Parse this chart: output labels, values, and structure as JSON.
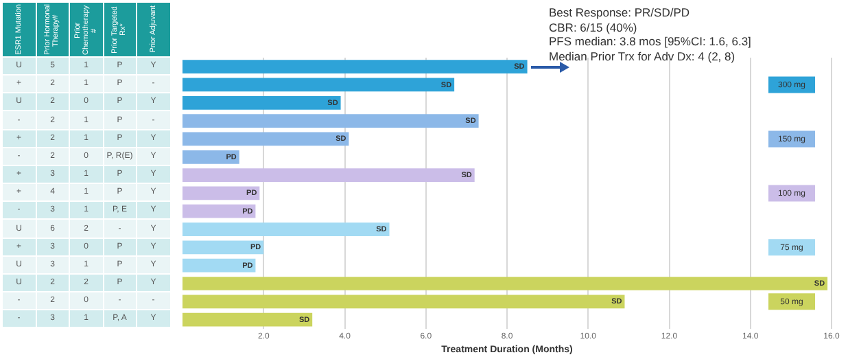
{
  "chart_data": [
    {
      "type": "other",
      "categories": [
        "ESR1 Mutation",
        "Prior Hormonal Therapy#",
        "Prior Chemotherapy #",
        "Prior Targeted Rx*",
        "Prior Adjuvant"
      ],
      "cell_labels": [
        [
          "U",
          "5",
          "1",
          "P",
          "Y"
        ],
        [
          "+",
          "2",
          "1",
          "P",
          "-"
        ],
        [
          "U",
          "2",
          "0",
          "P",
          "Y"
        ],
        [
          "-",
          "2",
          "1",
          "P",
          "-"
        ],
        [
          "+",
          "2",
          "1",
          "P",
          "Y"
        ],
        [
          "-",
          "2",
          "0",
          "P, R(E)",
          "Y"
        ],
        [
          "+",
          "3",
          "1",
          "P",
          "Y"
        ],
        [
          "+",
          "4",
          "1",
          "P",
          "Y"
        ],
        [
          "-",
          "3",
          "1",
          "P, E",
          "Y"
        ],
        [
          "U",
          "6",
          "2",
          "-",
          "Y"
        ],
        [
          "+",
          "3",
          "0",
          "P",
          "Y"
        ],
        [
          "U",
          "3",
          "1",
          "P",
          "Y"
        ],
        [
          "U",
          "2",
          "2",
          "P",
          "Y"
        ],
        [
          "-",
          "2",
          "0",
          "-",
          "-"
        ],
        [
          "-",
          "3",
          "1",
          "P, A",
          "Y"
        ]
      ]
    },
    {
      "type": "bar",
      "orientation": "horizontal",
      "stacked": true,
      "categories": [
        null,
        null,
        null,
        null,
        null,
        null,
        null,
        null,
        null,
        null,
        null,
        null,
        null,
        null,
        null
      ],
      "series": [
        {
          "name": "300 mg",
          "color": "#2ea3d8",
          "values": [
            8.5,
            6.7,
            3.9,
            null,
            null,
            null,
            null,
            null,
            null,
            null,
            null,
            null,
            null,
            null,
            null
          ],
          "value_labels": [
            "SD",
            "SD",
            "SD",
            null,
            null,
            null,
            null,
            null,
            null,
            null,
            null,
            null,
            null,
            null,
            null
          ]
        },
        {
          "name": "150 mg",
          "color": "#8cb8e8",
          "values": [
            null,
            null,
            null,
            7.3,
            4.1,
            1.4,
            null,
            null,
            null,
            null,
            null,
            null,
            null,
            null,
            null
          ],
          "value_labels": [
            null,
            null,
            null,
            "SD",
            "SD",
            "PD",
            null,
            null,
            null,
            null,
            null,
            null,
            null,
            null,
            null
          ]
        },
        {
          "name": "100 mg",
          "color": "#cbbde8",
          "values": [
            null,
            null,
            null,
            null,
            null,
            null,
            7.2,
            1.9,
            1.8,
            null,
            null,
            null,
            null,
            null,
            null
          ],
          "value_labels": [
            null,
            null,
            null,
            null,
            null,
            null,
            "SD",
            "PD",
            "PD",
            null,
            null,
            null,
            null,
            null,
            null
          ]
        },
        {
          "name": "75 mg",
          "color": "#a2daf3",
          "values": [
            null,
            null,
            null,
            null,
            null,
            null,
            null,
            null,
            null,
            5.1,
            2.0,
            1.8,
            null,
            null,
            null
          ],
          "value_labels": [
            null,
            null,
            null,
            null,
            null,
            null,
            null,
            null,
            null,
            "SD",
            "PD",
            "PD",
            null,
            null,
            null
          ]
        },
        {
          "name": "50 mg",
          "color": "#cbd45e",
          "values": [
            null,
            null,
            null,
            null,
            null,
            null,
            null,
            null,
            null,
            null,
            null,
            null,
            15.9,
            10.9,
            3.2
          ],
          "value_labels": [
            null,
            null,
            null,
            null,
            null,
            null,
            null,
            null,
            null,
            null,
            null,
            null,
            "SD",
            "SD",
            "SD"
          ]
        }
      ],
      "xlim": [
        0,
        16
      ],
      "xticks": [
        {
          "value": 2,
          "label": "2.0"
        },
        {
          "value": 4,
          "label": "4.0"
        },
        {
          "value": 6,
          "label": "6.0"
        },
        {
          "value": 8,
          "label": "8.0"
        },
        {
          "value": 10,
          "label": "10.0"
        },
        {
          "value": 12,
          "label": "12.0"
        },
        {
          "value": 14,
          "label": "14.0"
        },
        {
          "value": 16,
          "label": "16.0"
        }
      ],
      "xlabel": "Treatment Duration (Months)",
      "grid": "x",
      "legend": "right",
      "tick_labels": "x",
      "annotations": [
        "Best Response: PR/SD/PD",
        "CBR: 6/15 (40%)",
        "PFS median: 3.8 mos [95%CI: 1.6, 6.3]",
        "Median Prior Trx for Adv Dx: 4 (2, 8)"
      ]
    }
  ]
}
